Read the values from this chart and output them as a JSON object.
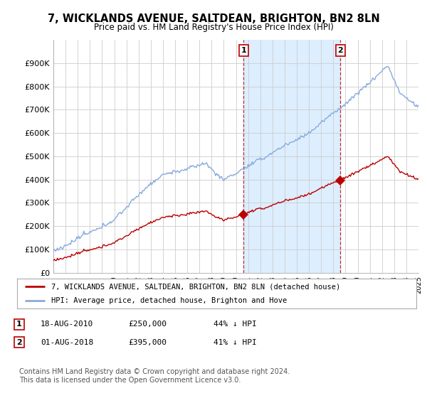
{
  "title": "7, WICKLANDS AVENUE, SALTDEAN, BRIGHTON, BN2 8LN",
  "subtitle": "Price paid vs. HM Land Registry's House Price Index (HPI)",
  "ylim": [
    0,
    1000000
  ],
  "yticks": [
    0,
    100000,
    200000,
    300000,
    400000,
    500000,
    600000,
    700000,
    800000,
    900000
  ],
  "ytick_labels": [
    "£0",
    "£100K",
    "£200K",
    "£300K",
    "£400K",
    "£500K",
    "£600K",
    "£700K",
    "£800K",
    "£900K"
  ],
  "background_color": "#ffffff",
  "plot_bg_color": "#ffffff",
  "grid_color": "#cccccc",
  "hpi_color": "#88aadd",
  "hpi_shade_color": "#ddeeff",
  "price_color": "#bb0000",
  "sale1_date": 2010.625,
  "sale1_price": 250000,
  "sale2_date": 2018.583,
  "sale2_price": 395000,
  "legend_house": "7, WICKLANDS AVENUE, SALTDEAN, BRIGHTON, BN2 8LN (detached house)",
  "legend_hpi": "HPI: Average price, detached house, Brighton and Hove",
  "footnote": "Contains HM Land Registry data © Crown copyright and database right 2024.\nThis data is licensed under the Open Government Licence v3.0.",
  "xmin": 1995,
  "xmax": 2025
}
